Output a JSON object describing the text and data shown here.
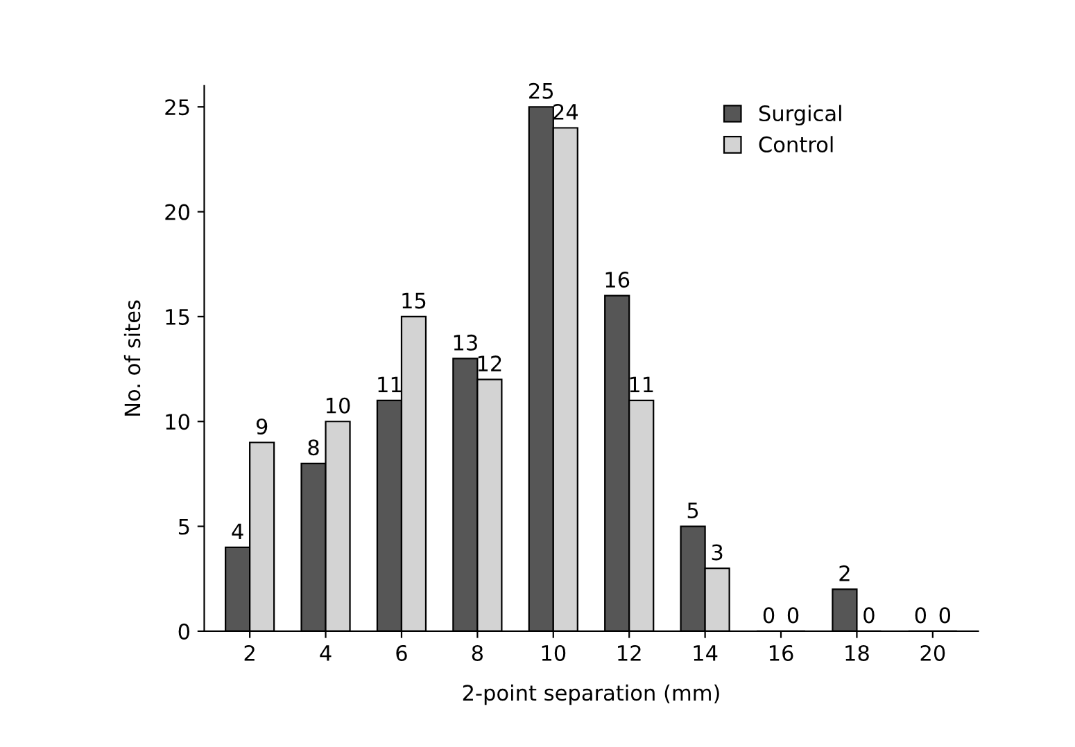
{
  "chart_data": {
    "type": "bar",
    "xlabel": "2-point separation (mm)",
    "ylabel": "No. of sites",
    "categories": [
      "2",
      "4",
      "6",
      "8",
      "10",
      "12",
      "14",
      "16",
      "18",
      "20"
    ],
    "series": [
      {
        "name": "Surgical",
        "color": "#565656",
        "values": [
          4,
          8,
          11,
          13,
          25,
          16,
          5,
          0,
          2,
          0
        ]
      },
      {
        "name": "Control",
        "color": "#d3d3d3",
        "values": [
          9,
          10,
          15,
          12,
          24,
          11,
          3,
          0,
          0,
          0
        ]
      }
    ],
    "ylim": [
      0,
      26
    ],
    "yticks": [
      0,
      5,
      10,
      15,
      20,
      25
    ],
    "data_labels": true,
    "legend": "top right",
    "grid": false
  }
}
